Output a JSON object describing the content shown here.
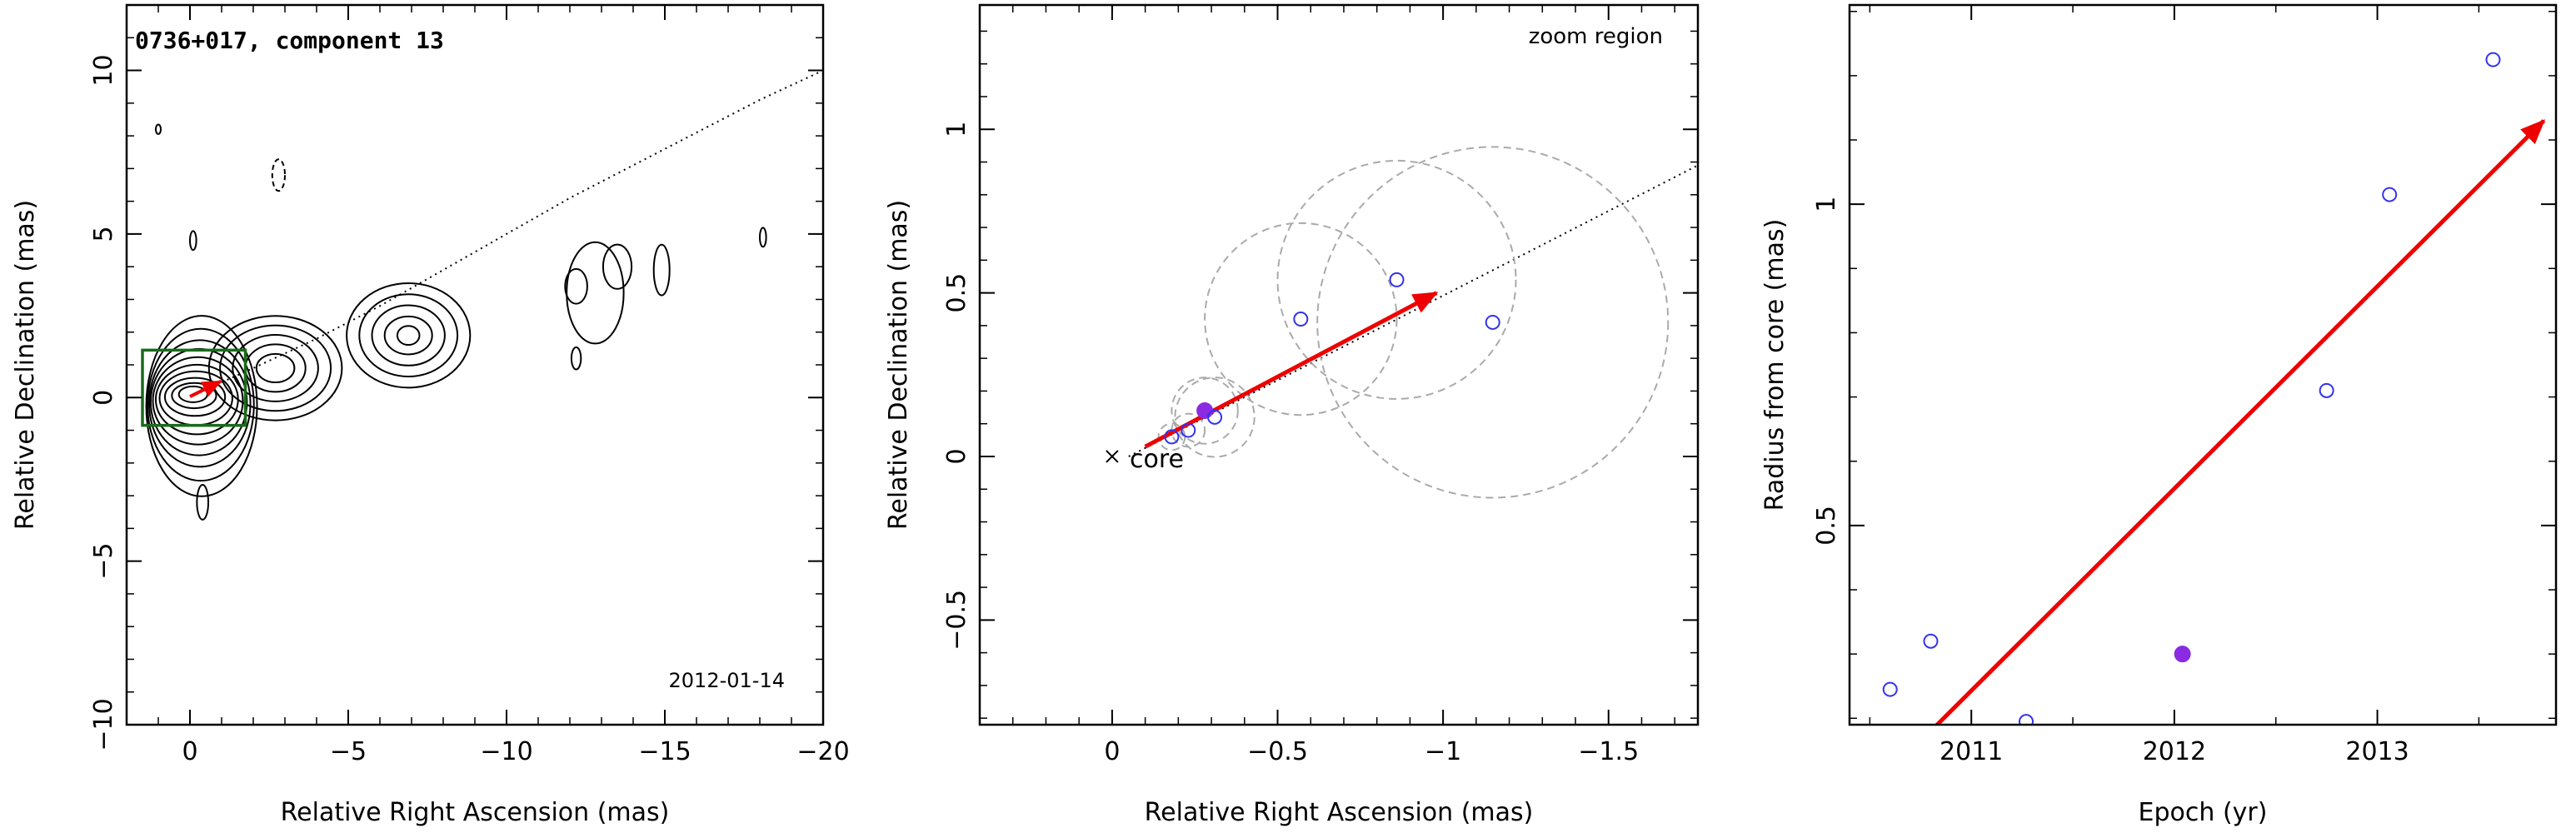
{
  "colors": {
    "contour": "#000000",
    "box": "#1a6b1a",
    "arrow": "#ee0000",
    "open_marker": "#3333ee",
    "filled_marker": "#8a2be2",
    "circle": "#aaaaaa"
  },
  "chart_data": [
    {
      "type": "contour",
      "title": "0736+017, component 13",
      "date_label": "2012-01-14",
      "xlabel": "Relative Right Ascension (mas)",
      "ylabel": "Relative Declination (mas)",
      "xlim": [
        2,
        -20
      ],
      "ylim": [
        -10,
        12
      ],
      "xticks": [
        0,
        -5,
        -10,
        -15,
        -20
      ],
      "yticks": [
        -10,
        -5,
        0,
        5,
        10
      ],
      "zoom_box": {
        "x": [
          1.5,
          -1.75
        ],
        "y": [
          -0.85,
          1.45
        ]
      },
      "arrow": {
        "from": [
          0,
          0.03
        ],
        "to": [
          -0.98,
          0.5
        ]
      },
      "trajectory": [
        [
          -0.5,
          0.25
        ],
        [
          -2,
          0.9
        ],
        [
          -4,
          1.8
        ],
        [
          -6,
          2.8
        ],
        [
          -8,
          3.9
        ],
        [
          -10,
          5.0
        ],
        [
          -12,
          6.1
        ],
        [
          -14,
          7.1
        ],
        [
          -16,
          8.1
        ],
        [
          -18,
          9.1
        ],
        [
          -20,
          10.0
        ]
      ]
    },
    {
      "type": "scatter",
      "panel_label": "zoom region",
      "core_label": "core",
      "xlabel": "Relative Right Ascension (mas)",
      "ylabel": "Relative Declination (mas)",
      "xlim": [
        0.4,
        -1.77
      ],
      "ylim": [
        -0.82,
        1.38
      ],
      "xticks": [
        0,
        -0.5,
        -1,
        -1.5
      ],
      "yticks": [
        -0.5,
        0,
        0.5,
        1
      ],
      "points": [
        {
          "x": -0.18,
          "y": 0.06,
          "r": 0.04,
          "filled": false
        },
        {
          "x": -0.23,
          "y": 0.08,
          "r": 0.05,
          "filled": false
        },
        {
          "x": -0.28,
          "y": 0.14,
          "r": 0.1,
          "filled": true
        },
        {
          "x": -0.31,
          "y": 0.12,
          "r": 0.12,
          "filled": false
        },
        {
          "x": -0.57,
          "y": 0.42,
          "r": 0.29,
          "filled": false
        },
        {
          "x": -0.86,
          "y": 0.54,
          "r": 0.36,
          "filled": false
        },
        {
          "x": -1.15,
          "y": 0.41,
          "r": 0.53,
          "filled": false
        }
      ],
      "arrow": {
        "from": [
          -0.1,
          0.03
        ],
        "to": [
          -0.98,
          0.5
        ]
      },
      "trajectory_start": [
        -0.05,
        0.0
      ],
      "trajectory_end": [
        -1.77,
        0.89
      ]
    },
    {
      "type": "scatter",
      "xlabel": "Epoch (yr)",
      "ylabel": "Radius from core (mas)",
      "xlim": [
        2010.4,
        2013.88
      ],
      "ylim": [
        0.19,
        1.31
      ],
      "xticks": [
        2011,
        2012,
        2013
      ],
      "yticks": [
        0.5,
        1
      ],
      "points": [
        {
          "x": 2010.6,
          "y": 0.245,
          "filled": false
        },
        {
          "x": 2010.8,
          "y": 0.32,
          "filled": false
        },
        {
          "x": 2011.27,
          "y": 0.195,
          "filled": false
        },
        {
          "x": 2012.04,
          "y": 0.3,
          "filled": true
        },
        {
          "x": 2012.75,
          "y": 0.71,
          "filled": false
        },
        {
          "x": 2013.06,
          "y": 1.015,
          "filled": false
        },
        {
          "x": 2013.57,
          "y": 1.225,
          "filled": false
        }
      ],
      "arrow": {
        "from": [
          2010.8,
          0.18
        ],
        "to": [
          2013.82,
          1.13
        ]
      }
    }
  ]
}
